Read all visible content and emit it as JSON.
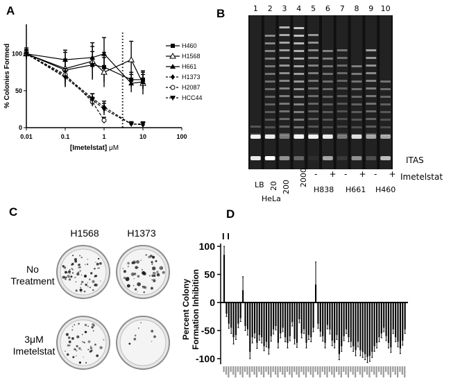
{
  "panels": {
    "a": "A",
    "b": "B",
    "c": "C",
    "d": "D"
  },
  "chart_data": [
    {
      "type": "line",
      "panel": "A",
      "xlabel_parts": {
        "main": "[Imetelstat] ",
        "unit": "μM"
      },
      "ylabel": "% Colonies Formed",
      "x_scale": "log",
      "xlim": [
        0.01,
        100
      ],
      "ylim": [
        0,
        140
      ],
      "x_ticks": [
        "0.01",
        "0.1",
        "1",
        "10",
        "100"
      ],
      "y_ticks": [
        "0",
        "50",
        "100"
      ],
      "vline": 3,
      "series": [
        {
          "name": "H460",
          "marker": "square",
          "dash": false,
          "x": [
            0.01,
            0.1,
            0.5,
            1,
            5,
            10
          ],
          "y": [
            100,
            78,
            85,
            82,
            65,
            65
          ],
          "err": [
            8,
            15,
            18,
            20,
            10,
            12
          ]
        },
        {
          "name": "H1568",
          "marker": "triangle-open",
          "dash": false,
          "x": [
            0.01,
            0.1,
            0.5,
            1,
            5,
            10
          ],
          "y": [
            100,
            80,
            90,
            75,
            92,
            60
          ],
          "err": [
            6,
            25,
            25,
            20,
            25,
            15
          ]
        },
        {
          "name": "H661",
          "marker": "triangle",
          "dash": false,
          "x": [
            0.01,
            0.1,
            0.5,
            1,
            5,
            10
          ],
          "y": [
            100,
            92,
            95,
            100,
            60,
            62
          ],
          "err": [
            5,
            10,
            15,
            22,
            12,
            10
          ]
        },
        {
          "name": "H1373",
          "marker": "diamond",
          "dash": true,
          "x": [
            0.01,
            0.1,
            0.5,
            1,
            5,
            10
          ],
          "y": [
            100,
            70,
            40,
            28,
            5,
            4
          ],
          "err": [
            4,
            10,
            6,
            8,
            3,
            3
          ]
        },
        {
          "name": "H2087",
          "marker": "circle-open",
          "dash": true,
          "x": [
            0.01,
            0.1,
            0.5,
            1
          ],
          "y": [
            100,
            72,
            35,
            10
          ],
          "err": [
            5,
            8,
            6,
            4
          ]
        },
        {
          "name": "HCC44",
          "marker": "triangle-down",
          "dash": true,
          "x": [
            0.01,
            0.1,
            0.5,
            1,
            5,
            10
          ],
          "y": [
            100,
            68,
            38,
            25,
            5,
            5
          ],
          "err": [
            5,
            12,
            8,
            8,
            3,
            3
          ]
        }
      ]
    },
    {
      "type": "bar",
      "panel": "D",
      "ylabel_lines": [
        "Percent Colony",
        "Formation Inhibition"
      ],
      "ylim": [
        -110,
        105
      ],
      "y_ticks": [
        "100",
        "50",
        "0",
        "-50",
        "-100"
      ],
      "values": [
        85,
        -20,
        -38,
        -45,
        -62,
        -58,
        -38,
        -28,
        22,
        -42,
        -48,
        -88,
        -62,
        -55,
        -72,
        -58,
        -62,
        -78,
        -70,
        -82,
        -60,
        -48,
        -42,
        -72,
        -55,
        -45,
        -62,
        -72,
        -60,
        -35,
        -65,
        -72,
        -30,
        -55,
        -48,
        -72,
        -58,
        -62,
        -45,
        32,
        -38,
        -52,
        -60,
        -72,
        -40,
        -48,
        -68,
        -72,
        -58,
        -92,
        -78,
        -60,
        -48,
        -62,
        -70,
        -78,
        -85,
        -70,
        -85,
        -88,
        -92,
        -97,
        -95,
        -88,
        -78,
        -72,
        -62,
        -55,
        -45,
        -60,
        -72,
        -80,
        -48,
        -62,
        -70,
        -82,
        -68,
        -48
      ],
      "errors": [
        15,
        5,
        8,
        10,
        12,
        8,
        7,
        6,
        24,
        8,
        10,
        12,
        10,
        8,
        10,
        9,
        10,
        8,
        9,
        10,
        9,
        8,
        7,
        9,
        8,
        7,
        8,
        9,
        8,
        7,
        9,
        8,
        6,
        8,
        7,
        9,
        8,
        8,
        7,
        40,
        8,
        8,
        9,
        9,
        7,
        8,
        9,
        9,
        8,
        10,
        9,
        8,
        7,
        8,
        9,
        9,
        10,
        9,
        10,
        10,
        10,
        10,
        10,
        10,
        9,
        9,
        8,
        8,
        7,
        8,
        9,
        9,
        7,
        8,
        9,
        9,
        8,
        7
      ],
      "top_marker": "I I"
    }
  ],
  "gel": {
    "lane_numbers": [
      "1",
      "2",
      "3",
      "4",
      "5",
      "6",
      "7",
      "8",
      "9",
      "10"
    ],
    "band_label": "ITAS",
    "treatment_label": "Imetelstat",
    "signs": [
      "-",
      "+",
      "-",
      "+",
      "-",
      "+"
    ],
    "lb": "LB",
    "hela_counts": [
      "20",
      "200",
      "2000"
    ],
    "hela": "HeLa",
    "cell_lines": [
      "H838",
      "H661",
      "H460"
    ]
  },
  "dishes": {
    "columns": [
      "H1568",
      "H1373"
    ],
    "row1_lines": [
      "No",
      "Treatment"
    ],
    "row2_lines_parts": {
      "prefix": "3",
      "unit": "μM",
      "line2": "Imetelstat"
    }
  }
}
